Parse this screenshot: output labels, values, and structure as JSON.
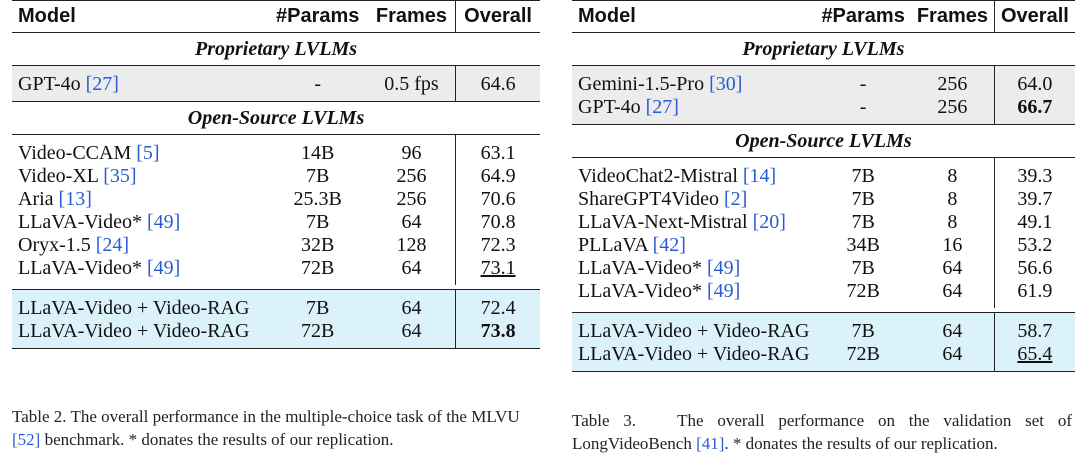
{
  "table2": {
    "headers": {
      "model": "Model",
      "params": "#Params",
      "frames": "Frames",
      "overall": "Overall"
    },
    "section_proprietary": "Proprietary LVLMs",
    "section_open": "Open-Source LVLMs",
    "proprietary": [
      {
        "model": "GPT-4o",
        "cite": "[27]",
        "params": "-",
        "frames": "0.5 fps",
        "overall": "64.6"
      }
    ],
    "open": [
      {
        "model": "Video-CCAM",
        "cite": "[5]",
        "params": "14B",
        "frames": "96",
        "overall": "63.1"
      },
      {
        "model": "Video-XL",
        "cite": "[35]",
        "params": "7B",
        "frames": "256",
        "overall": "64.9"
      },
      {
        "model": "Aria",
        "cite": "[13]",
        "params": "25.3B",
        "frames": "256",
        "overall": "70.6"
      },
      {
        "model": "LLaVA-Video*",
        "cite": "[49]",
        "params": "7B",
        "frames": "64",
        "overall": "70.8"
      },
      {
        "model": "Oryx-1.5",
        "cite": "[24]",
        "params": "32B",
        "frames": "128",
        "overall": "72.3"
      },
      {
        "model": "LLaVA-Video*",
        "cite": "[49]",
        "params": "72B",
        "frames": "64",
        "overall": "73.1",
        "style": "underline"
      }
    ],
    "ours": [
      {
        "model": "LLaVA-Video + Video-RAG",
        "params": "7B",
        "frames": "64",
        "overall": "72.4"
      },
      {
        "model": "LLaVA-Video + Video-RAG",
        "params": "72B",
        "frames": "64",
        "overall": "73.8",
        "style": "bold"
      }
    ],
    "caption": {
      "pre": "Table 2. The overall performance in the multiple-choice task of the MLVU ",
      "cite": "[52]",
      "post": " benchmark. * donates the results of our replication."
    }
  },
  "table3": {
    "headers": {
      "model": "Model",
      "params": "#Params",
      "frames": "Frames",
      "overall": "Overall"
    },
    "section_proprietary": "Proprietary LVLMs",
    "section_open": "Open-Source LVLMs",
    "proprietary": [
      {
        "model": "Gemini-1.5-Pro",
        "cite": "[30]",
        "params": "-",
        "frames": "256",
        "overall": "64.0"
      },
      {
        "model": "GPT-4o",
        "cite": "[27]",
        "params": "-",
        "frames": "256",
        "overall": "66.7",
        "style": "bold"
      }
    ],
    "open": [
      {
        "model": "VideoChat2-Mistral",
        "cite": "[14]",
        "params": "7B",
        "frames": "8",
        "overall": "39.3"
      },
      {
        "model": "ShareGPT4Video",
        "cite": "[2]",
        "params": "7B",
        "frames": "8",
        "overall": "39.7"
      },
      {
        "model": "LLaVA-Next-Mistral",
        "cite": "[20]",
        "params": "7B",
        "frames": "8",
        "overall": "49.1"
      },
      {
        "model": "PLLaVA",
        "cite": "[42]",
        "params": "34B",
        "frames": "16",
        "overall": "53.2"
      },
      {
        "model": "LLaVA-Video*",
        "cite": "[49]",
        "params": "7B",
        "frames": "64",
        "overall": "56.6"
      },
      {
        "model": "LLaVA-Video*",
        "cite": "[49]",
        "params": "72B",
        "frames": "64",
        "overall": "61.9"
      }
    ],
    "ours": [
      {
        "model": "LLaVA-Video + Video-RAG",
        "params": "7B",
        "frames": "64",
        "overall": "58.7"
      },
      {
        "model": "LLaVA-Video + Video-RAG",
        "params": "72B",
        "frames": "64",
        "overall": "65.4",
        "style": "underline"
      }
    ],
    "caption": {
      "pre": "Table 3.   The overall performance on the validation set of LongVideoBench ",
      "cite": "[41]",
      "post": ". * donates the results of our replication."
    }
  }
}
